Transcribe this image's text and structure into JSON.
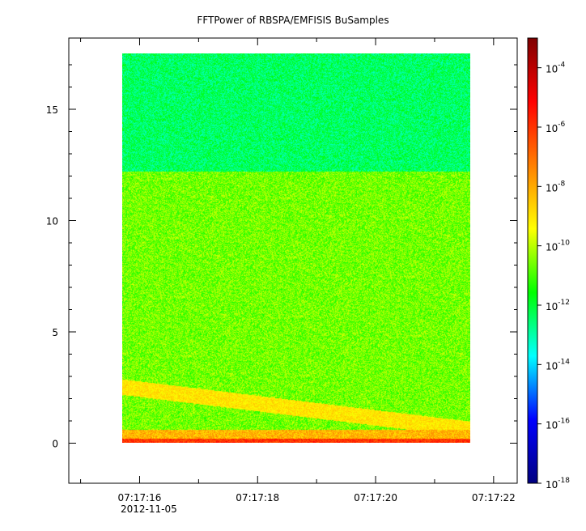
{
  "chart_data": {
    "type": "heatmap",
    "title": "FFTPower of RBSPA/EMFISIS  BuSamples",
    "xlabel": "",
    "ylabel": "",
    "x_range": [
      "07:17:14.8",
      "07:17:22.4"
    ],
    "data_x_range": [
      "07:17:15.7",
      "07:17:21.6"
    ],
    "y_range": [
      -1.8,
      18.2
    ],
    "data_y_range": [
      0,
      17.5
    ],
    "x_major_ticks": [
      "07:17:16",
      "07:17:18",
      "07:17:20",
      "07:17:22"
    ],
    "x_minor_ticks": [
      "07:17:15",
      "07:17:17",
      "07:17:19",
      "07:17:21"
    ],
    "x_date_label": "2012-11-05",
    "y_ticks": [
      "0",
      "5",
      "10",
      "15"
    ],
    "colorbar": {
      "scale": "log",
      "range": [
        1e-18,
        0.001
      ],
      "tick_base": "10",
      "tick_exponents": [
        "-4",
        "-6",
        "-8",
        "-10",
        "-12",
        "-14",
        "-16",
        "-18"
      ],
      "colormap": "rainbow",
      "colors": [
        "#00007f",
        "#0000ff",
        "#00ffff",
        "#00ff00",
        "#ffff00",
        "#ff7f00",
        "#ff0000",
        "#7f0000"
      ]
    },
    "bands": [
      {
        "y_from": 12.2,
        "y_to": 17.5,
        "power_log10": -12.4
      },
      {
        "y_from": 0.6,
        "y_to": 12.2,
        "power_log10": -10.6
      },
      {
        "y_from": 0.2,
        "y_to": 0.6,
        "power_log10": -8.2
      },
      {
        "y_from": 0.0,
        "y_to": 0.2,
        "power_log10": -6.0
      }
    ],
    "feature": {
      "description": "descending yellow band",
      "start": [
        "07:17:15.7",
        2.5
      ],
      "end": [
        "07:17:21.6",
        0.6
      ],
      "power_log10": -9.0
    }
  }
}
